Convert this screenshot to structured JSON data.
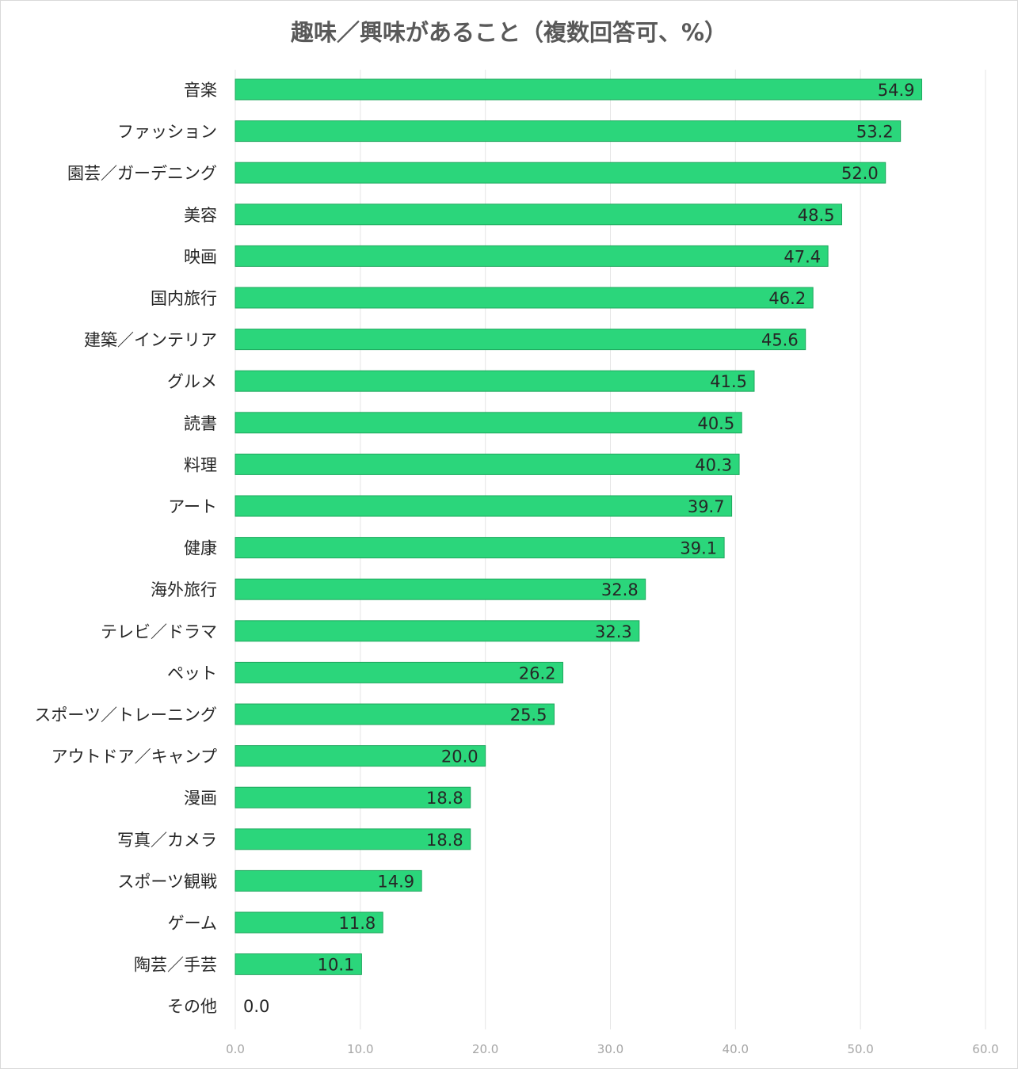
{
  "chart_data": {
    "type": "bar",
    "orientation": "horizontal",
    "title": "趣味／興味があること（複数回答可、%）",
    "categories": [
      "音楽",
      "ファッション",
      "園芸／ガーデニング",
      "美容",
      "映画",
      "国内旅行",
      "建築／インテリア",
      "グルメ",
      "読書",
      "料理",
      "アート",
      "健康",
      "海外旅行",
      "テレビ／ドラマ",
      "ペット",
      "スポーツ／トレーニング",
      "アウトドア／キャンプ",
      "漫画",
      "写真／カメラ",
      "スポーツ観戦",
      "ゲーム",
      "陶芸／手芸",
      "その他"
    ],
    "values": [
      54.9,
      53.2,
      52.0,
      48.5,
      47.4,
      46.2,
      45.6,
      41.5,
      40.5,
      40.3,
      39.7,
      39.1,
      32.8,
      32.3,
      26.2,
      25.5,
      20.0,
      18.8,
      18.8,
      14.9,
      11.8,
      10.1,
      0.0
    ],
    "value_labels": [
      "54.9",
      "53.2",
      "52.0",
      "48.5",
      "47.4",
      "46.2",
      "45.6",
      "41.5",
      "40.5",
      "40.3",
      "39.7",
      "39.1",
      "32.8",
      "32.3",
      "26.2",
      "25.5",
      "20.0",
      "18.8",
      "18.8",
      "14.9",
      "11.8",
      "10.1",
      "0.0"
    ],
    "xlim": [
      0,
      60
    ],
    "x_ticks": [
      0,
      10,
      20,
      30,
      40,
      50,
      60
    ],
    "x_tick_labels": [
      "0.0",
      "10.0",
      "20.0",
      "30.0",
      "40.0",
      "50.0",
      "60.0"
    ],
    "xlabel": "",
    "ylabel": "",
    "grid": true,
    "legend": false,
    "colors": {
      "bar": "#2bd67b",
      "bar_border": "#1fa85e",
      "grid": "#e6e6e6",
      "tick_text": "#a6a6a6",
      "label_text": "#262626",
      "title_text": "#595959"
    }
  }
}
